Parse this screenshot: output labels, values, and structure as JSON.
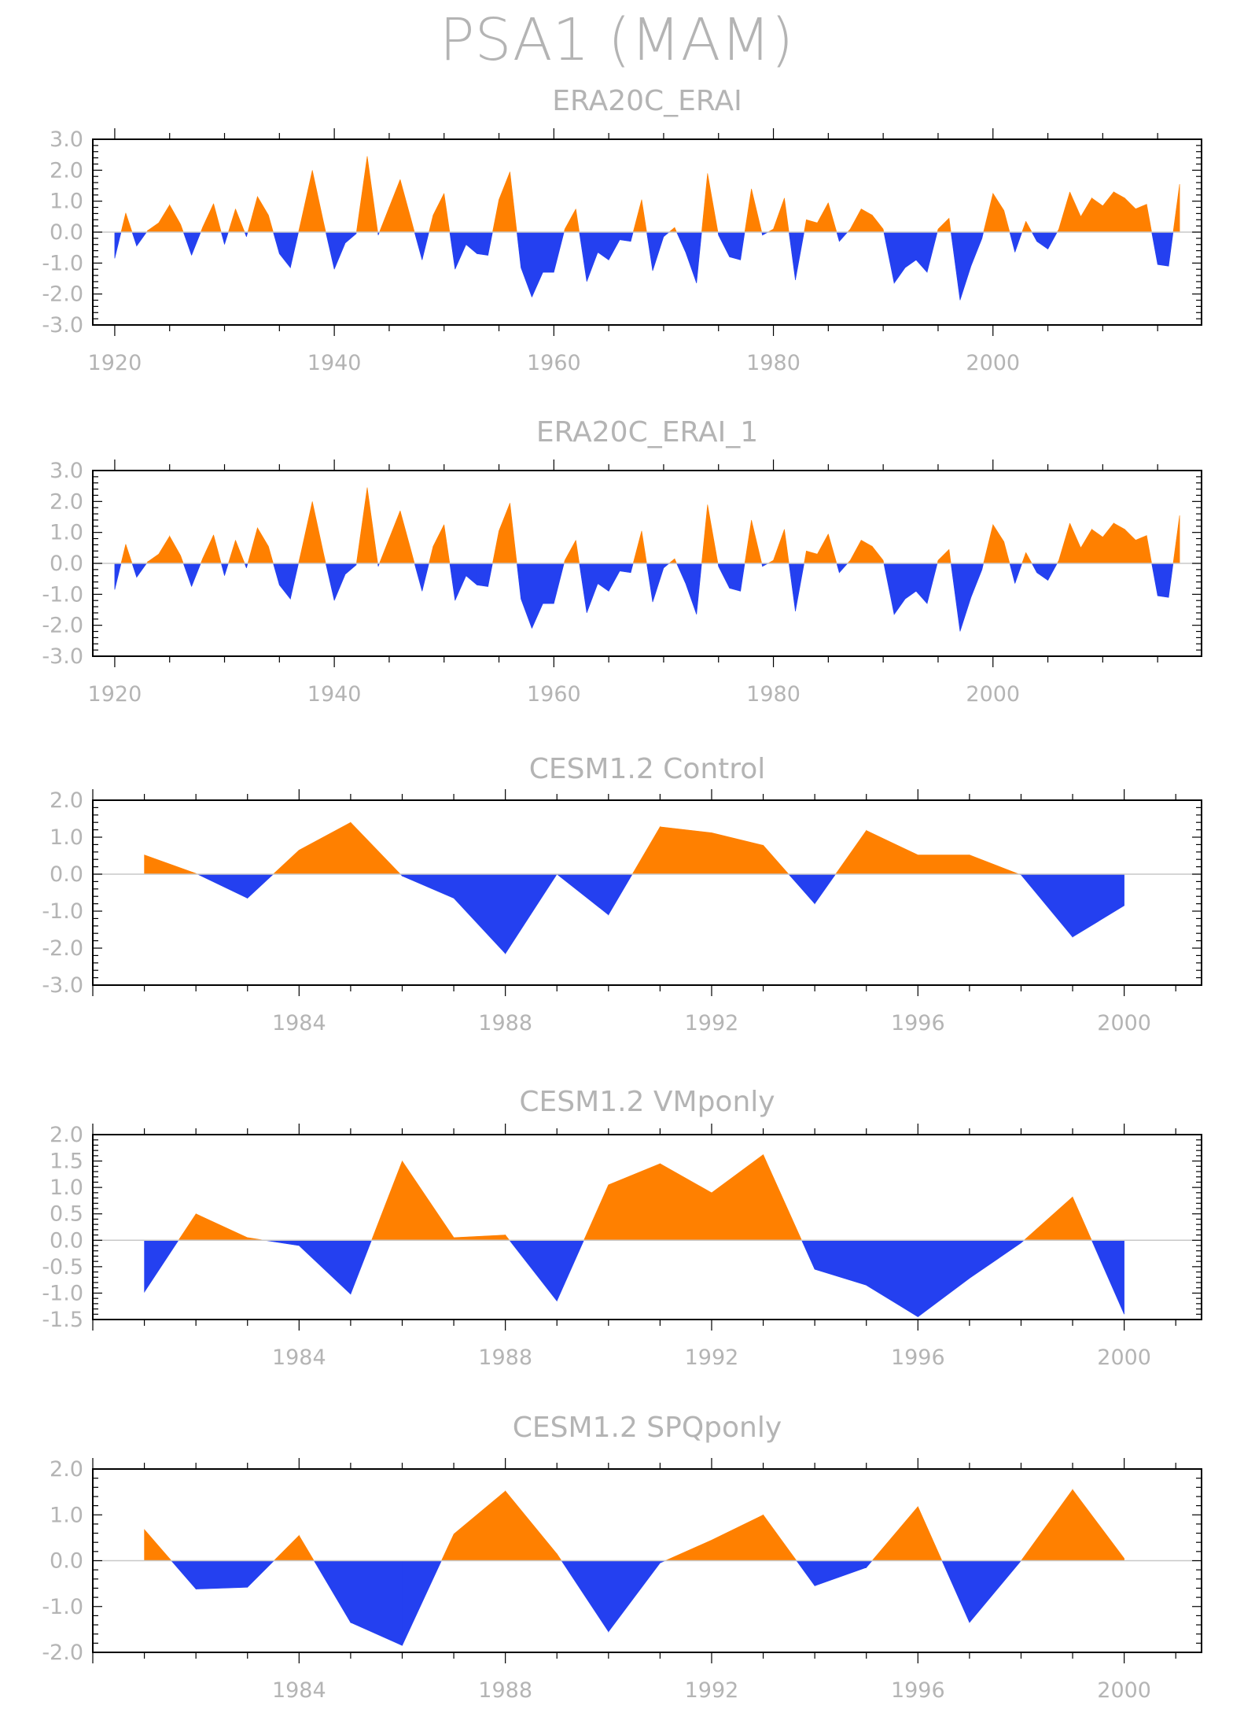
{
  "title": "PSA1 (MAM)",
  "colors": {
    "positive": "#ff8000",
    "negative": "#2440f0",
    "axis": "#000000",
    "text": "#b4b4b4",
    "zero_line": "#c8c8c8"
  },
  "chart_data": [
    {
      "type": "area",
      "title": "ERA20C_ERAI",
      "xlim": [
        1918,
        2019
      ],
      "ylim": [
        -3.0,
        3.0
      ],
      "xticks": [
        1920,
        1940,
        1960,
        1980,
        2000
      ],
      "yticks": [
        "-3.0",
        "-2.0",
        "-1.0",
        "0.0",
        "1.0",
        "2.0",
        "3.0"
      ],
      "x": [
        1920,
        1921,
        1922,
        1923,
        1924,
        1925,
        1926,
        1927,
        1928,
        1929,
        1930,
        1931,
        1932,
        1933,
        1934,
        1935,
        1936,
        1937,
        1938,
        1939,
        1940,
        1941,
        1942,
        1943,
        1944,
        1945,
        1946,
        1947,
        1948,
        1949,
        1950,
        1951,
        1952,
        1953,
        1954,
        1955,
        1956,
        1957,
        1958,
        1959,
        1960,
        1961,
        1962,
        1963,
        1964,
        1965,
        1966,
        1967,
        1968,
        1969,
        1970,
        1971,
        1972,
        1973,
        1974,
        1975,
        1976,
        1977,
        1978,
        1979,
        1980,
        1981,
        1982,
        1983,
        1984,
        1985,
        1986,
        1987,
        1988,
        1989,
        1990,
        1991,
        1992,
        1993,
        1994,
        1995,
        1996,
        1997,
        1998,
        1999,
        2000,
        2001,
        2002,
        2003,
        2004,
        2005,
        2006,
        2007,
        2008,
        2009,
        2010,
        2011,
        2012,
        2013,
        2014,
        2015,
        2016,
        2017
      ],
      "values": [
        -0.85,
        0.62,
        -0.45,
        0.05,
        0.3,
        0.88,
        0.25,
        -0.75,
        0.15,
        0.92,
        -0.4,
        0.75,
        -0.15,
        1.15,
        0.55,
        -0.7,
        -1.15,
        0.4,
        2.0,
        0.35,
        -1.2,
        -0.35,
        -0.05,
        2.45,
        -0.1,
        0.8,
        1.7,
        0.4,
        -0.9,
        0.55,
        1.25,
        -1.2,
        -0.4,
        -0.7,
        -0.75,
        1.05,
        1.95,
        -1.15,
        -2.1,
        -1.3,
        -1.3,
        0.1,
        0.75,
        -1.6,
        -0.65,
        -0.9,
        -0.25,
        -0.3,
        1.05,
        -1.25,
        -0.15,
        0.15,
        -0.65,
        -1.65,
        1.9,
        -0.1,
        -0.8,
        -0.9,
        1.4,
        -0.1,
        0.1,
        1.1,
        -1.55,
        0.4,
        0.3,
        0.95,
        -0.3,
        0.1,
        0.75,
        0.55,
        0.1,
        -1.65,
        -1.15,
        -0.9,
        -1.3,
        0.1,
        0.45,
        -2.2,
        -1.1,
        -0.2,
        1.25,
        0.7,
        -0.65,
        0.35,
        -0.3,
        -0.55,
        0.1,
        1.3,
        0.5,
        1.1,
        0.85,
        1.3,
        1.1,
        0.75,
        0.9,
        -1.05,
        -1.1,
        1.55
      ]
    },
    {
      "type": "area",
      "title": "ERA20C_ERAI_1",
      "xlim": [
        1918,
        2019
      ],
      "ylim": [
        -3.0,
        3.0
      ],
      "xticks": [
        1920,
        1940,
        1960,
        1980,
        2000
      ],
      "yticks": [
        "-3.0",
        "-2.0",
        "-1.0",
        "0.0",
        "1.0",
        "2.0",
        "3.0"
      ],
      "x": [
        1920,
        1921,
        1922,
        1923,
        1924,
        1925,
        1926,
        1927,
        1928,
        1929,
        1930,
        1931,
        1932,
        1933,
        1934,
        1935,
        1936,
        1937,
        1938,
        1939,
        1940,
        1941,
        1942,
        1943,
        1944,
        1945,
        1946,
        1947,
        1948,
        1949,
        1950,
        1951,
        1952,
        1953,
        1954,
        1955,
        1956,
        1957,
        1958,
        1959,
        1960,
        1961,
        1962,
        1963,
        1964,
        1965,
        1966,
        1967,
        1968,
        1969,
        1970,
        1971,
        1972,
        1973,
        1974,
        1975,
        1976,
        1977,
        1978,
        1979,
        1980,
        1981,
        1982,
        1983,
        1984,
        1985,
        1986,
        1987,
        1988,
        1989,
        1990,
        1991,
        1992,
        1993,
        1994,
        1995,
        1996,
        1997,
        1998,
        1999,
        2000,
        2001,
        2002,
        2003,
        2004,
        2005,
        2006,
        2007,
        2008,
        2009,
        2010,
        2011,
        2012,
        2013,
        2014,
        2015,
        2016,
        2017
      ],
      "values": [
        -0.85,
        0.62,
        -0.45,
        0.05,
        0.3,
        0.88,
        0.25,
        -0.75,
        0.15,
        0.92,
        -0.4,
        0.75,
        -0.15,
        1.15,
        0.55,
        -0.7,
        -1.15,
        0.4,
        2.0,
        0.35,
        -1.2,
        -0.35,
        -0.05,
        2.45,
        -0.1,
        0.8,
        1.7,
        0.4,
        -0.9,
        0.55,
        1.25,
        -1.2,
        -0.4,
        -0.7,
        -0.75,
        1.05,
        1.95,
        -1.15,
        -2.1,
        -1.3,
        -1.3,
        0.1,
        0.75,
        -1.6,
        -0.65,
        -0.9,
        -0.25,
        -0.3,
        1.05,
        -1.25,
        -0.15,
        0.15,
        -0.65,
        -1.65,
        1.9,
        -0.1,
        -0.8,
        -0.9,
        1.4,
        -0.1,
        0.1,
        1.1,
        -1.55,
        0.4,
        0.3,
        0.95,
        -0.3,
        0.1,
        0.75,
        0.55,
        0.1,
        -1.65,
        -1.15,
        -0.9,
        -1.3,
        0.1,
        0.45,
        -2.2,
        -1.1,
        -0.2,
        1.25,
        0.7,
        -0.65,
        0.35,
        -0.3,
        -0.55,
        0.1,
        1.3,
        0.5,
        1.1,
        0.85,
        1.3,
        1.1,
        0.75,
        0.9,
        -1.05,
        -1.1,
        1.55
      ]
    },
    {
      "type": "area",
      "title": "CESM1.2 Control",
      "xlim": [
        1980,
        2001.5
      ],
      "ylim": [
        -3.0,
        2.0
      ],
      "xticks": [
        1984,
        1988,
        1992,
        1996,
        2000
      ],
      "yticks": [
        "-3.0",
        "-2.0",
        "-1.0",
        "0.0",
        "1.0",
        "2.0"
      ],
      "x": [
        1981,
        1982,
        1983,
        1984,
        1985,
        1986,
        1987,
        1988,
        1989,
        1990,
        1991,
        1992,
        1993,
        1994,
        1995,
        1996,
        1997,
        1998,
        1999,
        2000
      ],
      "values": [
        0.52,
        0.02,
        -0.65,
        0.65,
        1.4,
        -0.05,
        -0.65,
        -2.15,
        0.0,
        -1.1,
        1.28,
        1.12,
        0.78,
        -0.8,
        1.18,
        0.52,
        0.52,
        -0.02,
        -1.7,
        -0.85
      ]
    },
    {
      "type": "area",
      "title": "CESM1.2 VMponly",
      "xlim": [
        1980,
        2001.5
      ],
      "ylim": [
        -1.5,
        2.0
      ],
      "xticks": [
        1984,
        1988,
        1992,
        1996,
        2000
      ],
      "yticks": [
        "-1.5",
        "-1.0",
        "-0.5",
        "0.0",
        "0.5",
        "1.0",
        "1.5",
        "2.0"
      ],
      "x": [
        1981,
        1982,
        1983,
        1984,
        1985,
        1986,
        1987,
        1988,
        1989,
        1990,
        1991,
        1992,
        1993,
        1994,
        1995,
        1996,
        1997,
        1998,
        1999,
        2000
      ],
      "values": [
        -0.98,
        0.5,
        0.05,
        -0.1,
        -1.02,
        1.5,
        0.05,
        0.1,
        -1.15,
        1.05,
        1.45,
        0.9,
        1.62,
        -0.55,
        -0.85,
        -1.45,
        -0.72,
        -0.05,
        0.82,
        -1.4
      ]
    },
    {
      "type": "area",
      "title": "CESM1.2 SPQponly",
      "xlim": [
        1980,
        2001.5
      ],
      "ylim": [
        -2.0,
        2.0
      ],
      "xticks": [
        1984,
        1988,
        1992,
        1996,
        2000
      ],
      "yticks": [
        "-2.0",
        "-1.0",
        "0.0",
        "1.0",
        "2.0"
      ],
      "x": [
        1981,
        1982,
        1983,
        1984,
        1985,
        1986,
        1987,
        1988,
        1989,
        1990,
        1991,
        1992,
        1993,
        1994,
        1995,
        1996,
        1997,
        1998,
        1999,
        2000
      ],
      "values": [
        0.68,
        -0.62,
        -0.58,
        0.55,
        -1.35,
        -1.85,
        0.58,
        1.52,
        0.15,
        -1.55,
        -0.05,
        0.45,
        1.0,
        -0.55,
        -0.15,
        1.18,
        -1.35,
        0.0,
        1.55,
        0.05
      ]
    }
  ]
}
